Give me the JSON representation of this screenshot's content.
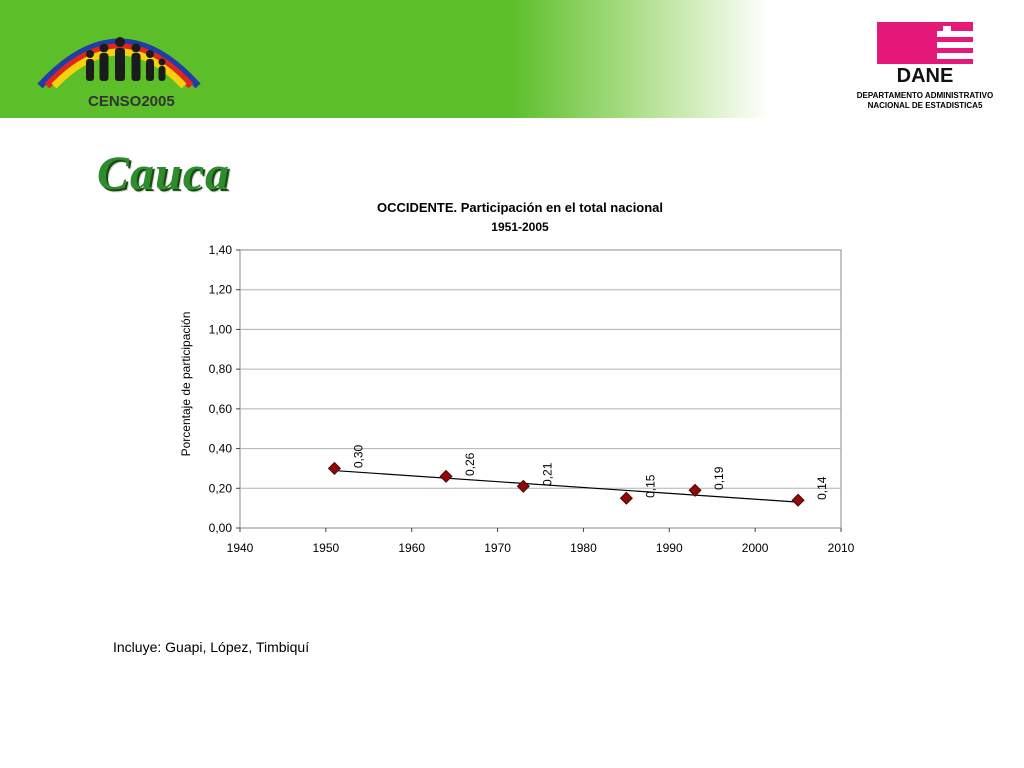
{
  "header": {
    "left_logo_text": "CENSO2005",
    "right_logo_text": "DANE",
    "org_line1": "DEPARTAMENTO ADMINISTRATIVO",
    "org_line2": "NACIONAL DE ESTADISTICA5",
    "colors": {
      "banner_green": "#5cbf2a",
      "dane_magenta": "#e5197a"
    }
  },
  "page": {
    "title": "Cauca",
    "note": "Incluye: Guapi, López, Timbiquí"
  },
  "chart_data": {
    "type": "scatter",
    "title": "OCCIDENTE.  Participación en el total nacional",
    "subtitle": "1951-2005",
    "ylabel": "Porcentaje de participación",
    "xlabel": "",
    "xlim": [
      1940,
      2010
    ],
    "ylim": [
      0,
      1.4
    ],
    "x_ticks": [
      "1940",
      "1950",
      "1960",
      "1970",
      "1980",
      "1990",
      "2000",
      "2010"
    ],
    "y_ticks": [
      "0,00",
      "0,20",
      "0,40",
      "0,60",
      "0,80",
      "1,00",
      "1,20",
      "1,40"
    ],
    "grid": true,
    "marker_color": "#8b0a0a",
    "series": [
      {
        "points": [
          {
            "x": 1951,
            "y": 0.3,
            "label": "0,30"
          },
          {
            "x": 1964,
            "y": 0.26,
            "label": "0,26"
          },
          {
            "x": 1973,
            "y": 0.21,
            "label": "0,21"
          },
          {
            "x": 1985,
            "y": 0.15,
            "label": "0,15"
          },
          {
            "x": 1993,
            "y": 0.19,
            "label": "0,19"
          },
          {
            "x": 2005,
            "y": 0.14,
            "label": "0,14"
          }
        ]
      }
    ],
    "trendline": {
      "type": "linear",
      "x_from": 1951,
      "x_to": 2005
    }
  }
}
